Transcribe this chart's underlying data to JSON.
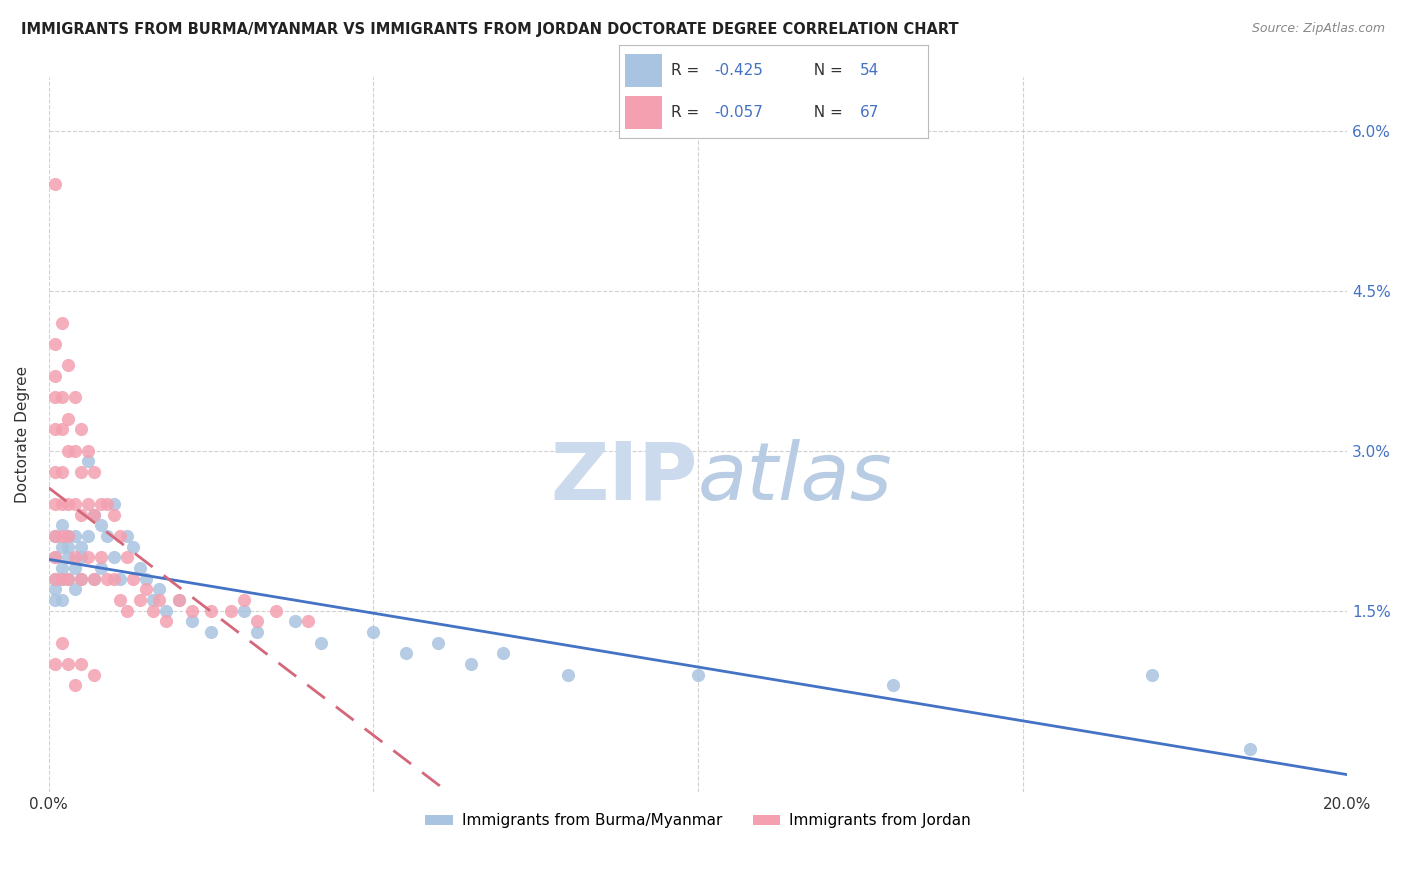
{
  "title": "IMMIGRANTS FROM BURMA/MYANMAR VS IMMIGRANTS FROM JORDAN DOCTORATE DEGREE CORRELATION CHART",
  "source": "Source: ZipAtlas.com",
  "ylabel": "Doctorate Degree",
  "right_yticks": [
    "6.0%",
    "4.5%",
    "3.0%",
    "1.5%"
  ],
  "right_ytick_vals": [
    0.06,
    0.045,
    0.03,
    0.015
  ],
  "xlim": [
    0.0,
    0.2
  ],
  "ylim": [
    -0.002,
    0.065
  ],
  "legend_r1_prefix": "R = ",
  "legend_r1_val": "-0.425",
  "legend_r1_n": "  N = 54",
  "legend_r2_prefix": "R = ",
  "legend_r2_val": "-0.057",
  "legend_r2_n": "  N = 67",
  "color_burma": "#a8c4e0",
  "color_jordan": "#f4a0b0",
  "trendline_burma_color": "#4472c4",
  "trendline_jordan_color": "#d4687a",
  "accent_color": "#4472c4",
  "background_color": "#ffffff",
  "grid_color": "#cccccc",
  "title_fontsize": 10.5,
  "source_fontsize": 9,
  "burma_x": [
    0.001,
    0.001,
    0.001,
    0.001,
    0.001,
    0.002,
    0.002,
    0.002,
    0.002,
    0.002,
    0.003,
    0.003,
    0.003,
    0.003,
    0.004,
    0.004,
    0.004,
    0.005,
    0.005,
    0.005,
    0.006,
    0.006,
    0.007,
    0.007,
    0.008,
    0.008,
    0.009,
    0.01,
    0.01,
    0.011,
    0.012,
    0.013,
    0.014,
    0.015,
    0.016,
    0.017,
    0.018,
    0.02,
    0.022,
    0.025,
    0.03,
    0.032,
    0.038,
    0.042,
    0.05,
    0.055,
    0.06,
    0.065,
    0.07,
    0.08,
    0.1,
    0.13,
    0.17,
    0.185
  ],
  "burma_y": [
    0.02,
    0.018,
    0.017,
    0.016,
    0.022,
    0.021,
    0.019,
    0.018,
    0.023,
    0.016,
    0.022,
    0.02,
    0.018,
    0.021,
    0.019,
    0.017,
    0.022,
    0.021,
    0.018,
    0.02,
    0.029,
    0.022,
    0.024,
    0.018,
    0.023,
    0.019,
    0.022,
    0.025,
    0.02,
    0.018,
    0.022,
    0.021,
    0.019,
    0.018,
    0.016,
    0.017,
    0.015,
    0.016,
    0.014,
    0.013,
    0.015,
    0.013,
    0.014,
    0.012,
    0.013,
    0.011,
    0.012,
    0.01,
    0.011,
    0.009,
    0.009,
    0.008,
    0.009,
    0.002
  ],
  "jordan_x": [
    0.001,
    0.001,
    0.001,
    0.001,
    0.001,
    0.001,
    0.001,
    0.001,
    0.001,
    0.001,
    0.002,
    0.002,
    0.002,
    0.002,
    0.002,
    0.002,
    0.002,
    0.003,
    0.003,
    0.003,
    0.003,
    0.003,
    0.003,
    0.004,
    0.004,
    0.004,
    0.004,
    0.005,
    0.005,
    0.005,
    0.005,
    0.006,
    0.006,
    0.006,
    0.007,
    0.007,
    0.007,
    0.008,
    0.008,
    0.009,
    0.009,
    0.01,
    0.01,
    0.011,
    0.011,
    0.012,
    0.012,
    0.013,
    0.014,
    0.015,
    0.016,
    0.017,
    0.018,
    0.02,
    0.022,
    0.025,
    0.028,
    0.03,
    0.032,
    0.035,
    0.04,
    0.001,
    0.002,
    0.003,
    0.004,
    0.005,
    0.007
  ],
  "jordan_y": [
    0.055,
    0.04,
    0.037,
    0.035,
    0.032,
    0.028,
    0.025,
    0.022,
    0.02,
    0.018,
    0.042,
    0.035,
    0.032,
    0.028,
    0.025,
    0.022,
    0.018,
    0.038,
    0.033,
    0.03,
    0.025,
    0.022,
    0.018,
    0.035,
    0.03,
    0.025,
    0.02,
    0.032,
    0.028,
    0.024,
    0.018,
    0.03,
    0.025,
    0.02,
    0.028,
    0.024,
    0.018,
    0.025,
    0.02,
    0.025,
    0.018,
    0.024,
    0.018,
    0.022,
    0.016,
    0.02,
    0.015,
    0.018,
    0.016,
    0.017,
    0.015,
    0.016,
    0.014,
    0.016,
    0.015,
    0.015,
    0.015,
    0.016,
    0.014,
    0.015,
    0.014,
    0.01,
    0.012,
    0.01,
    0.008,
    0.01,
    0.009
  ],
  "xtick_positions": [
    0.0,
    0.05,
    0.1,
    0.15,
    0.2
  ],
  "xtick_labels": [
    "0.0%",
    "",
    "",
    "",
    "20.0%"
  ],
  "legend_burma": "Immigrants from Burma/Myanmar",
  "legend_jordan": "Immigrants from Jordan"
}
